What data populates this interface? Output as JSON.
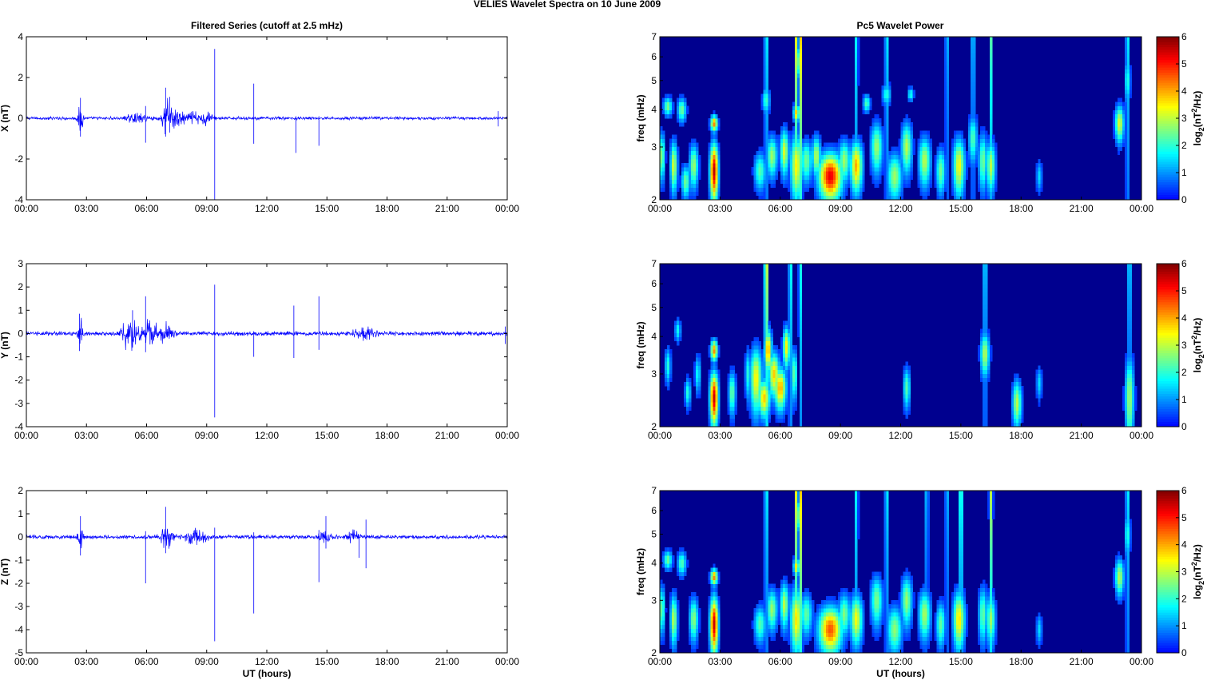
{
  "figure": {
    "title": "VELIES Wavelet Spectra on 10 June      2009",
    "left_column_title": "Filtered Series (cutoff at 2.5 mHz)",
    "right_column_title": "Pc5 Wavelet Power",
    "bottom_xlabel": "UT (hours)"
  },
  "colors": {
    "series_line": "#0000ff",
    "spectrum_background": "#00008f",
    "colormap": "jet"
  },
  "chart_data": [
    {
      "type": "line",
      "xlabel": "",
      "ylabel": "X (nT)",
      "x_ticks": [
        "00:00",
        "03:00",
        "06:00",
        "09:00",
        "12:00",
        "15:00",
        "18:00",
        "21:00",
        "00:00"
      ],
      "xlim_hours": [
        0,
        24
      ],
      "ylim": [
        -4,
        4
      ],
      "y_ticks": [
        -4,
        -2,
        0,
        2,
        4
      ],
      "series": [
        {
          "noise_level": 0.09,
          "bursts": [
            [
              2.7,
              0.9,
              0.12
            ],
            [
              5.5,
              0.25,
              0.5
            ],
            [
              7.0,
              1.0,
              0.25
            ],
            [
              7.6,
              0.5,
              0.4
            ],
            [
              8.4,
              0.3,
              0.4
            ],
            [
              9.0,
              0.35,
              0.3
            ]
          ],
          "spikes": [
            [
              2.7,
              1.0,
              -0.9
            ],
            [
              5.95,
              0.6,
              -1.2
            ],
            [
              6.95,
              1.5,
              -0.9
            ],
            [
              7.15,
              1.05,
              -0.7
            ],
            [
              9.4,
              3.4,
              -4.0
            ],
            [
              11.35,
              1.7,
              -1.25
            ],
            [
              13.45,
              0.1,
              -1.7
            ],
            [
              14.6,
              0.1,
              -1.35
            ],
            [
              23.55,
              0.35,
              -0.4
            ]
          ]
        }
      ]
    },
    {
      "type": "line",
      "xlabel": "",
      "ylabel": "Y (nT)",
      "x_ticks": [
        "00:00",
        "03:00",
        "06:00",
        "09:00",
        "12:00",
        "15:00",
        "18:00",
        "21:00",
        "00:00"
      ],
      "xlim_hours": [
        0,
        24
      ],
      "ylim": [
        -4,
        3
      ],
      "y_ticks": [
        -4,
        -3,
        -2,
        -1,
        0,
        1,
        2,
        3
      ],
      "series": [
        {
          "noise_level": 0.11,
          "bursts": [
            [
              2.7,
              0.8,
              0.12
            ],
            [
              5.2,
              0.9,
              0.4
            ],
            [
              6.2,
              0.6,
              0.4
            ],
            [
              7.0,
              0.5,
              0.3
            ],
            [
              16.8,
              0.3,
              0.5
            ]
          ],
          "spikes": [
            [
              2.65,
              0.85,
              -0.75
            ],
            [
              5.3,
              1.0,
              -0.6
            ],
            [
              5.95,
              1.6,
              -0.8
            ],
            [
              9.4,
              2.1,
              -3.6
            ],
            [
              11.35,
              0.1,
              -1.0
            ],
            [
              13.35,
              1.2,
              -1.05
            ],
            [
              14.6,
              1.6,
              -0.7
            ],
            [
              23.9,
              0.3,
              -0.45
            ]
          ]
        }
      ]
    },
    {
      "type": "line",
      "xlabel": "UT (hours)",
      "ylabel": "Z (nT)",
      "x_ticks": [
        "00:00",
        "03:00",
        "06:00",
        "09:00",
        "12:00",
        "15:00",
        "18:00",
        "21:00",
        "00:00"
      ],
      "xlim_hours": [
        0,
        24
      ],
      "ylim": [
        -5,
        2
      ],
      "y_ticks": [
        -5,
        -4,
        -3,
        -2,
        -1,
        0,
        1,
        2
      ],
      "series": [
        {
          "noise_level": 0.1,
          "bursts": [
            [
              2.7,
              0.8,
              0.12
            ],
            [
              7.0,
              0.6,
              0.3
            ],
            [
              8.5,
              0.4,
              0.5
            ],
            [
              14.9,
              0.45,
              0.3
            ],
            [
              16.3,
              0.3,
              0.3
            ]
          ],
          "spikes": [
            [
              2.7,
              0.9,
              -0.8
            ],
            [
              5.95,
              0.25,
              -2.0
            ],
            [
              6.95,
              1.3,
              -0.7
            ],
            [
              9.4,
              0.4,
              -4.5
            ],
            [
              11.35,
              0.2,
              -3.3
            ],
            [
              14.6,
              0.3,
              -1.95
            ],
            [
              14.95,
              0.9,
              -0.5
            ],
            [
              16.6,
              0.1,
              -0.9
            ],
            [
              16.95,
              0.75,
              -1.35
            ]
          ]
        }
      ]
    },
    {
      "type": "heatmap",
      "xlabel": "",
      "ylabel": "freq (mHz)",
      "x_ticks": [
        "00:00",
        "03:00",
        "06:00",
        "09:00",
        "12:00",
        "15:00",
        "18:00",
        "21:00",
        "00:00"
      ],
      "xlim_hours": [
        0,
        24
      ],
      "y_scale": "log",
      "ylim_mhz": [
        2,
        7
      ],
      "y_ticks": [
        2,
        3,
        4,
        5,
        6,
        7
      ],
      "colorbar": {
        "label": "log2(nT2/Hz)",
        "label_base": "log",
        "label_sub": "2",
        "label_mid": "(nT",
        "label_sup": "2",
        "label_end": "/Hz)",
        "ticks": [
          0,
          1,
          2,
          3,
          4,
          5,
          6
        ],
        "range": [
          0,
          6
        ]
      },
      "blobs": [
        [
          0.1,
          2.8,
          0.1,
          0.35,
          2.8
        ],
        [
          0.4,
          4.1,
          0.15,
          0.2,
          2.6
        ],
        [
          0.7,
          2.6,
          0.12,
          0.35,
          3.2
        ],
        [
          1.1,
          4.0,
          0.15,
          0.25,
          2.5
        ],
        [
          1.3,
          2.3,
          0.15,
          0.2,
          2.5
        ],
        [
          1.7,
          2.6,
          0.15,
          0.3,
          2.8
        ],
        [
          2.7,
          2.5,
          0.14,
          0.38,
          5.6
        ],
        [
          2.7,
          3.6,
          0.12,
          0.15,
          4.3
        ],
        [
          5.0,
          2.5,
          0.2,
          0.25,
          2.3
        ],
        [
          5.3,
          4.3,
          0.12,
          0.3,
          2.2
        ],
        [
          5.6,
          2.8,
          0.18,
          0.3,
          2.8
        ],
        [
          6.2,
          2.9,
          0.15,
          0.35,
          3.2
        ],
        [
          6.8,
          2.6,
          0.2,
          0.45,
          3.5
        ],
        [
          6.8,
          3.9,
          0.1,
          0.18,
          3.8
        ],
        [
          6.9,
          5.8,
          0.1,
          0.5,
          2.4
        ],
        [
          7.3,
          2.7,
          0.2,
          0.3,
          2.5
        ],
        [
          7.8,
          2.8,
          0.15,
          0.3,
          3.0
        ],
        [
          8.5,
          2.4,
          0.4,
          0.3,
          5.3
        ],
        [
          9.2,
          2.7,
          0.2,
          0.3,
          2.8
        ],
        [
          9.8,
          2.6,
          0.2,
          0.35,
          4.0
        ],
        [
          10.3,
          4.2,
          0.12,
          0.2,
          2.3
        ],
        [
          10.8,
          3.0,
          0.2,
          0.4,
          2.8
        ],
        [
          11.3,
          4.5,
          0.15,
          0.25,
          2.0
        ],
        [
          11.7,
          2.4,
          0.25,
          0.3,
          2.8
        ],
        [
          12.3,
          3.0,
          0.18,
          0.4,
          3.0
        ],
        [
          12.5,
          4.5,
          0.1,
          0.15,
          2.0
        ],
        [
          13.2,
          2.7,
          0.2,
          0.35,
          3.0
        ],
        [
          14.0,
          2.5,
          0.15,
          0.3,
          2.5
        ],
        [
          14.9,
          2.6,
          0.2,
          0.4,
          3.4
        ],
        [
          15.6,
          3.2,
          0.15,
          0.4,
          2.3
        ],
        [
          16.1,
          2.7,
          0.15,
          0.4,
          2.5
        ],
        [
          16.5,
          2.6,
          0.15,
          0.35,
          3.0
        ],
        [
          18.9,
          2.4,
          0.1,
          0.2,
          1.5
        ],
        [
          22.9,
          3.6,
          0.15,
          0.35,
          3.3
        ],
        [
          23.3,
          5.0,
          0.1,
          0.6,
          2.0
        ]
      ],
      "streaks": [
        [
          5.3,
          2.0
        ],
        [
          6.8,
          3.5
        ],
        [
          7.0,
          4.0
        ],
        [
          9.8,
          1.8
        ],
        [
          11.3,
          2.0
        ],
        [
          14.3,
          1.5
        ],
        [
          15.6,
          1.8
        ],
        [
          16.5,
          2.3
        ],
        [
          23.3,
          2.0
        ]
      ]
    },
    {
      "type": "heatmap",
      "xlabel": "",
      "ylabel": "freq (mHz)",
      "x_ticks": [
        "00:00",
        "03:00",
        "06:00",
        "09:00",
        "12:00",
        "15:00",
        "18:00",
        "21:00",
        "00:00"
      ],
      "xlim_hours": [
        0,
        24
      ],
      "y_scale": "log",
      "ylim_mhz": [
        2,
        7
      ],
      "y_ticks": [
        2,
        3,
        4,
        5,
        6,
        7
      ],
      "colorbar": {
        "label": "log2(nT2/Hz)",
        "label_base": "log",
        "label_sub": "2",
        "label_mid": "(nT",
        "label_sup": "2",
        "label_end": "/Hz)",
        "ticks": [
          0,
          1,
          2,
          3,
          4,
          5,
          6
        ],
        "range": [
          0,
          6
        ]
      },
      "blobs": [
        [
          0.4,
          3.2,
          0.1,
          0.3,
          2.0
        ],
        [
          0.9,
          4.2,
          0.1,
          0.25,
          1.8
        ],
        [
          1.4,
          2.6,
          0.1,
          0.2,
          2.0
        ],
        [
          1.9,
          3.0,
          0.1,
          0.3,
          1.8
        ],
        [
          2.7,
          2.5,
          0.14,
          0.35,
          5.5
        ],
        [
          2.7,
          3.6,
          0.12,
          0.2,
          4.2
        ],
        [
          3.6,
          2.6,
          0.12,
          0.3,
          2.5
        ],
        [
          4.4,
          3.0,
          0.1,
          0.4,
          2.0
        ],
        [
          4.8,
          2.9,
          0.2,
          0.5,
          3.5
        ],
        [
          5.2,
          2.5,
          0.2,
          0.25,
          3.8
        ],
        [
          5.4,
          3.6,
          0.12,
          0.4,
          4.2
        ],
        [
          5.7,
          3.0,
          0.18,
          0.35,
          3.8
        ],
        [
          6.0,
          2.7,
          0.2,
          0.3,
          4.0
        ],
        [
          6.3,
          3.7,
          0.12,
          0.4,
          3.5
        ],
        [
          6.7,
          3.0,
          0.1,
          0.4,
          2.5
        ],
        [
          12.3,
          2.7,
          0.12,
          0.3,
          2.3
        ],
        [
          16.2,
          3.5,
          0.15,
          0.4,
          3.0
        ],
        [
          17.8,
          2.4,
          0.15,
          0.3,
          3.0
        ],
        [
          18.9,
          2.8,
          0.1,
          0.25,
          1.5
        ],
        [
          23.4,
          2.5,
          0.15,
          0.6,
          2.8
        ]
      ],
      "streaks": [
        [
          5.3,
          3.8
        ],
        [
          6.5,
          2.2
        ],
        [
          7.0,
          2.0
        ],
        [
          16.2,
          2.0
        ],
        [
          23.4,
          2.0
        ]
      ]
    },
    {
      "type": "heatmap",
      "xlabel": "UT (hours)",
      "ylabel": "freq (mHz)",
      "x_ticks": [
        "00:00",
        "03:00",
        "06:00",
        "09:00",
        "12:00",
        "15:00",
        "18:00",
        "21:00",
        "00:00"
      ],
      "xlim_hours": [
        0,
        24
      ],
      "y_scale": "log",
      "ylim_mhz": [
        2,
        7
      ],
      "y_ticks": [
        2,
        3,
        4,
        5,
        6,
        7
      ],
      "colorbar": {
        "label": "log2(nT2/Hz)",
        "label_base": "log",
        "label_sub": "2",
        "label_mid": "(nT",
        "label_sup": "2",
        "label_end": "/Hz)",
        "ticks": [
          0,
          1,
          2,
          3,
          4,
          5,
          6
        ],
        "range": [
          0,
          6
        ]
      },
      "blobs": [
        [
          0.1,
          2.8,
          0.1,
          0.35,
          2.6
        ],
        [
          0.4,
          4.1,
          0.15,
          0.2,
          2.5
        ],
        [
          0.7,
          2.6,
          0.12,
          0.35,
          3.0
        ],
        [
          1.1,
          4.0,
          0.15,
          0.25,
          2.3
        ],
        [
          1.7,
          2.6,
          0.15,
          0.3,
          2.7
        ],
        [
          2.7,
          2.5,
          0.14,
          0.38,
          5.5
        ],
        [
          2.7,
          3.6,
          0.12,
          0.15,
          4.3
        ],
        [
          5.0,
          2.5,
          0.2,
          0.25,
          2.3
        ],
        [
          5.6,
          2.8,
          0.18,
          0.3,
          2.8
        ],
        [
          6.2,
          2.9,
          0.15,
          0.35,
          3.0
        ],
        [
          6.8,
          2.6,
          0.2,
          0.45,
          3.6
        ],
        [
          6.8,
          3.9,
          0.1,
          0.18,
          3.6
        ],
        [
          6.9,
          5.8,
          0.1,
          0.5,
          2.4
        ],
        [
          7.3,
          2.7,
          0.2,
          0.3,
          2.4
        ],
        [
          8.5,
          2.4,
          0.4,
          0.3,
          4.6
        ],
        [
          9.2,
          2.7,
          0.2,
          0.3,
          2.6
        ],
        [
          9.8,
          2.6,
          0.2,
          0.35,
          3.4
        ],
        [
          10.8,
          3.0,
          0.2,
          0.4,
          2.6
        ],
        [
          11.7,
          2.4,
          0.25,
          0.3,
          2.7
        ],
        [
          12.3,
          3.0,
          0.18,
          0.4,
          2.8
        ],
        [
          13.2,
          2.7,
          0.2,
          0.35,
          2.9
        ],
        [
          14.0,
          2.5,
          0.15,
          0.3,
          2.4
        ],
        [
          14.9,
          2.6,
          0.2,
          0.4,
          3.6
        ],
        [
          16.1,
          2.7,
          0.15,
          0.4,
          2.4
        ],
        [
          16.5,
          2.6,
          0.15,
          0.35,
          2.8
        ],
        [
          18.9,
          2.4,
          0.1,
          0.2,
          1.5
        ],
        [
          22.9,
          3.6,
          0.15,
          0.35,
          3.0
        ],
        [
          23.3,
          5.0,
          0.1,
          0.6,
          2.0
        ]
      ],
      "streaks": [
        [
          5.3,
          2.0
        ],
        [
          6.8,
          3.5
        ],
        [
          7.0,
          4.0
        ],
        [
          9.8,
          1.8
        ],
        [
          11.3,
          2.0
        ],
        [
          13.3,
          1.5
        ],
        [
          14.3,
          1.5
        ],
        [
          15.0,
          3.0
        ],
        [
          16.5,
          3.0
        ],
        [
          23.3,
          2.0
        ]
      ]
    }
  ]
}
